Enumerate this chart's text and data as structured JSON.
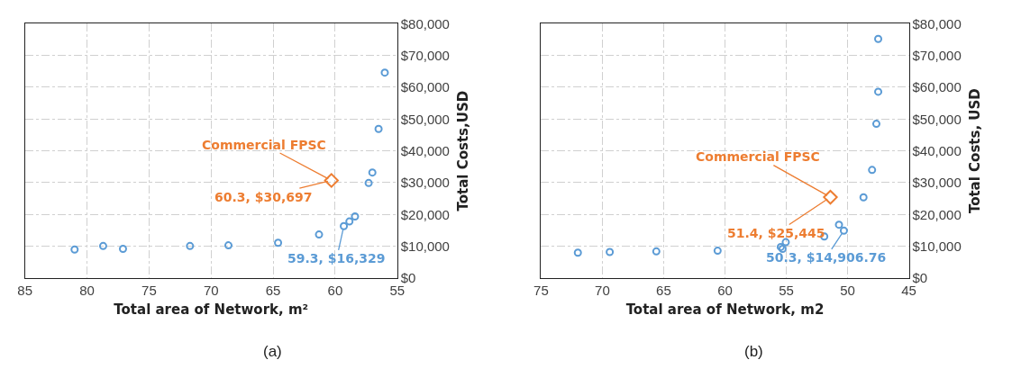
{
  "chart_data": [
    {
      "type": "scatter",
      "xlabel": "Total area of Network, m²",
      "ylabel": "Total Costs,USD",
      "xlim": [
        85,
        55
      ],
      "xticks": [
        85,
        80,
        75,
        70,
        65,
        60,
        55
      ],
      "ylim": [
        0,
        80000
      ],
      "yticks": [
        {
          "value": 0,
          "label": "$0"
        },
        {
          "value": 10000,
          "label": "$10,000"
        },
        {
          "value": 20000,
          "label": "$20,000"
        },
        {
          "value": 30000,
          "label": "$30,000"
        },
        {
          "value": 40000,
          "label": "$40,000"
        },
        {
          "value": 50000,
          "label": "$50,000"
        },
        {
          "value": 60000,
          "label": "$60,000"
        },
        {
          "value": 70000,
          "label": "$70,000"
        },
        {
          "value": 80000,
          "label": "$80,000"
        }
      ],
      "grid": true,
      "marker": "circle",
      "series": [
        {
          "color": "#5b9bd5",
          "x": [
            81.0,
            78.7,
            77.1,
            71.7,
            68.6,
            64.6,
            61.3,
            59.3,
            58.85,
            58.4,
            57.3,
            57.0,
            56.5,
            56.0
          ],
          "values": [
            9000,
            10100,
            9200,
            10100,
            10300,
            11100,
            13700,
            16329,
            17800,
            19400,
            29900,
            33200,
            46900,
            64600
          ]
        },
        {
          "color": "#ed7d31",
          "marker": "diamond",
          "x": [
            60.3
          ],
          "values": [
            30697
          ]
        }
      ],
      "annotations": [
        {
          "text": "Commercial FPSC",
          "x": 60.3,
          "y": 30697
        },
        {
          "text": "60.3, $30,697",
          "x": 60.3,
          "y": 30697
        },
        {
          "text": "59.3, $16,329",
          "x": 59.3,
          "y": 16329
        },
        "(a)"
      ]
    },
    {
      "type": "scatter",
      "xlabel": "Total area of Network, m2",
      "ylabel": "Total Costs, USD",
      "xlim": [
        75,
        45
      ],
      "xticks": [
        75,
        70,
        65,
        60,
        55,
        50,
        45
      ],
      "ylim": [
        0,
        80000
      ],
      "yticks": [
        {
          "value": 0,
          "label": "$0"
        },
        {
          "value": 10000,
          "label": "$10,000"
        },
        {
          "value": 20000,
          "label": "$20,000"
        },
        {
          "value": 30000,
          "label": "$30,000"
        },
        {
          "value": 40000,
          "label": "$40,000"
        },
        {
          "value": 50000,
          "label": "$50,000"
        },
        {
          "value": 60000,
          "label": "$60,000"
        },
        {
          "value": 70000,
          "label": "$70,000"
        },
        {
          "value": 80000,
          "label": "$80,000"
        }
      ],
      "grid": true,
      "marker": "circle",
      "series": [
        {
          "color": "#5b9bd5",
          "x": [
            72.0,
            69.4,
            65.6,
            60.6,
            55.45,
            55.3,
            55.04,
            51.9,
            50.7,
            50.3,
            48.7,
            48.0,
            47.65,
            47.5,
            47.5
          ],
          "values": [
            8000,
            8200,
            8400,
            8600,
            9800,
            9200,
            11300,
            13100,
            16800,
            14906.76,
            25400,
            34000,
            48500,
            58600,
            75200
          ]
        },
        {
          "color": "#ed7d31",
          "marker": "diamond",
          "x": [
            51.4
          ],
          "values": [
            25445
          ]
        }
      ],
      "annotations": [
        {
          "text": "Commercial FPSC",
          "x": 51.4,
          "y": 25445
        },
        {
          "text": "51.4, $25,445",
          "x": 51.4,
          "y": 25445
        },
        {
          "text": "50.3, $14,906.76",
          "x": 50.3,
          "y": 14906.76
        },
        "(b)"
      ]
    }
  ]
}
